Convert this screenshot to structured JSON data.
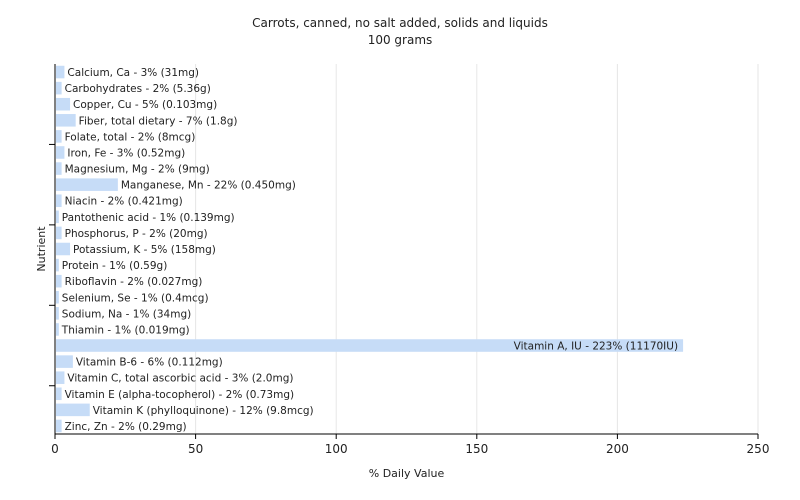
{
  "chart_data": {
    "type": "bar",
    "orientation": "horizontal",
    "title": "Carrots, canned, no salt added, solids and liquids",
    "subtitle": "100 grams",
    "xlabel": "% Daily Value",
    "ylabel": "Nutrient",
    "xlim": [
      0,
      250
    ],
    "xticks": [
      0,
      50,
      100,
      150,
      200,
      250
    ],
    "grid": true,
    "bar_color": "#c6dcf7",
    "categories": [
      "Calcium, Ca",
      "Carbohydrates",
      "Copper, Cu",
      "Fiber, total dietary",
      "Folate, total",
      "Iron, Fe",
      "Magnesium, Mg",
      "Manganese, Mn",
      "Niacin",
      "Pantothenic acid",
      "Phosphorus, P",
      "Potassium, K",
      "Protein",
      "Riboflavin",
      "Selenium, Se",
      "Sodium, Na",
      "Thiamin",
      "Vitamin A, IU",
      "Vitamin B-6",
      "Vitamin C, total ascorbic acid",
      "Vitamin E (alpha-tocopherol)",
      "Vitamin K (phylloquinone)",
      "Zinc, Zn"
    ],
    "values": [
      3,
      2,
      5,
      7,
      2,
      3,
      2,
      22,
      2,
      1,
      2,
      5,
      1,
      2,
      1,
      1,
      1,
      223,
      6,
      3,
      2,
      12,
      2
    ],
    "data_labels": [
      "Calcium, Ca - 3% (31mg)",
      "Carbohydrates - 2% (5.36g)",
      "Copper, Cu - 5% (0.103mg)",
      "Fiber, total dietary - 7% (1.8g)",
      "Folate, total - 2% (8mcg)",
      "Iron, Fe - 3% (0.52mg)",
      "Magnesium, Mg - 2% (9mg)",
      "Manganese, Mn - 22% (0.450mg)",
      "Niacin - 2% (0.421mg)",
      "Pantothenic acid - 1% (0.139mg)",
      "Phosphorus, P - 2% (20mg)",
      "Potassium, K - 5% (158mg)",
      "Protein - 1% (0.59g)",
      "Riboflavin - 2% (0.027mg)",
      "Selenium, Se - 1% (0.4mcg)",
      "Sodium, Na - 1% (34mg)",
      "Thiamin - 1% (0.019mg)",
      "Vitamin A, IU - 223% (11170IU)",
      "Vitamin B-6 - 6% (0.112mg)",
      "Vitamin C, total ascorbic acid - 3% (2.0mg)",
      "Vitamin E (alpha-tocopherol) - 2% (0.73mg)",
      "Vitamin K (phylloquinone) - 12% (9.8mcg)",
      "Zinc, Zn - 2% (0.29mg)"
    ]
  }
}
